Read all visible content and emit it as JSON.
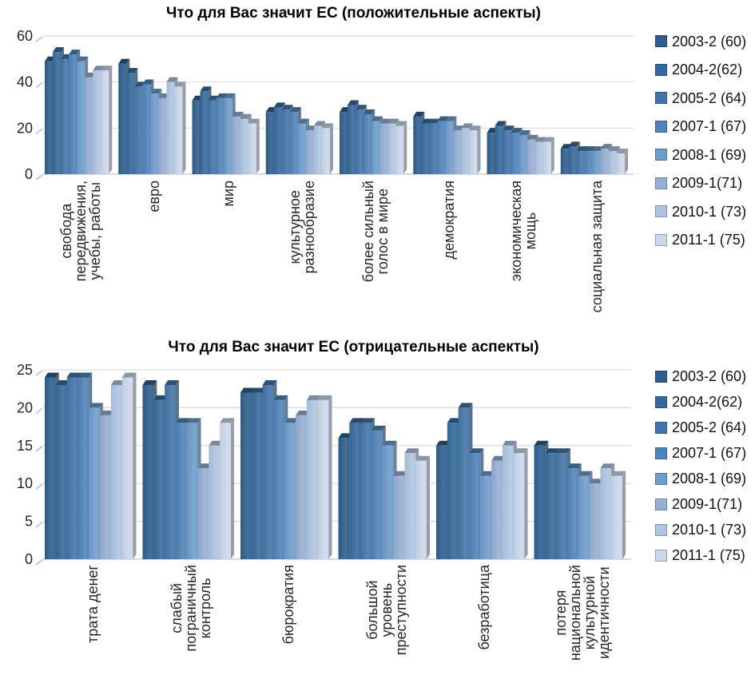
{
  "page": {
    "background": "#ffffff"
  },
  "charts": [
    {
      "title": "Что для Вас значит ЕС (положительные аспекты)",
      "chart_data": {
        "type": "bar",
        "title": "Что для Вас значит ЕС (положительные аспекты)",
        "xlabel": "",
        "ylabel": "",
        "ylim": [
          0,
          60
        ],
        "yticks": [
          0,
          20,
          40,
          60
        ],
        "grid": true,
        "legend_position": "right",
        "categories": [
          "свобода\nпередвижения,\nучебы, работы",
          "евро",
          "мир",
          "культурное\nразнообразие",
          "более сильный\nголос в мире",
          "демократия",
          "экономическая\nмощь",
          "социальная защита"
        ],
        "series": [
          {
            "name": "2003-2 (60)",
            "color": "#2E5E8C",
            "values": [
              49,
              48,
              32,
              27,
              27,
              25,
              18,
              11
            ]
          },
          {
            "name": "2004-2(62)",
            "color": "#36699B",
            "values": [
              53,
              44,
              36,
              29,
              30,
              22,
              21,
              12
            ]
          },
          {
            "name": "2005-2 (64)",
            "color": "#4374A7",
            "values": [
              50,
              38,
              32,
              28,
              28,
              22,
              19,
              10
            ]
          },
          {
            "name": "2007-1 (67)",
            "color": "#4F83B9",
            "values": [
              52,
              39,
              33,
              27,
              26,
              23,
              18,
              10
            ]
          },
          {
            "name": "2008-1 (69)",
            "color": "#6E9CCB",
            "values": [
              49,
              35,
              33,
              22,
              23,
              23,
              17,
              10
            ]
          },
          {
            "name": "2009-1(71)",
            "color": "#96AED3",
            "values": [
              42,
              33,
              25,
              19,
              22,
              19,
              15,
              11
            ]
          },
          {
            "name": "2010-1 (73)",
            "color": "#AFC4E1",
            "values": [
              45,
              40,
              24,
              21,
              22,
              20,
              14,
              10
            ]
          },
          {
            "name": "2011-1 (75)",
            "color": "#CBD7EC",
            "values": [
              45,
              38,
              22,
              20,
              21,
              19,
              14,
              9
            ]
          }
        ]
      }
    },
    {
      "title": "Что для Вас значит ЕС (отрицательные аспекты)",
      "chart_data": {
        "type": "bar",
        "title": "Что для Вас значит ЕС (отрицательные аспекты)",
        "xlabel": "",
        "ylabel": "",
        "ylim": [
          0,
          25
        ],
        "yticks": [
          0,
          5,
          10,
          15,
          20,
          25
        ],
        "grid": true,
        "legend_position": "right",
        "categories": [
          "трата денег",
          "слабый\nпограничный\nконтроль",
          "бюрократия",
          "большой\nуровень\nпреступности",
          "безработица",
          "потеря\nнациональной\nкультурной\nидентичности"
        ],
        "series": [
          {
            "name": "2003-2 (60)",
            "color": "#2E5E8C",
            "values": [
              24,
              23,
              22,
              16,
              15,
              15
            ]
          },
          {
            "name": "2004-2(62)",
            "color": "#36699B",
            "values": [
              23,
              21,
              22,
              18,
              18,
              14
            ]
          },
          {
            "name": "2005-2 (64)",
            "color": "#4374A7",
            "values": [
              24,
              23,
              23,
              18,
              20,
              14
            ]
          },
          {
            "name": "2007-1 (67)",
            "color": "#4F83B9",
            "values": [
              24,
              18,
              21,
              17,
              14,
              12
            ]
          },
          {
            "name": "2008-1 (69)",
            "color": "#6E9CCB",
            "values": [
              20,
              18,
              18,
              15,
              11,
              11
            ]
          },
          {
            "name": "2009-1(71)",
            "color": "#96AED3",
            "values": [
              19,
              12,
              19,
              11,
              13,
              10
            ]
          },
          {
            "name": "2010-1 (73)",
            "color": "#AFC4E1",
            "values": [
              23,
              15,
              21,
              14,
              15,
              12
            ]
          },
          {
            "name": "2011-1 (75)",
            "color": "#CBD7EC",
            "values": [
              24,
              18,
              21,
              13,
              14,
              11
            ]
          }
        ]
      }
    }
  ],
  "colors": {
    "gridline": "#D9D9D9",
    "zero_line": "#C2C2C2",
    "tick_mark": "#A3B4C9",
    "axis_text": "#262626"
  }
}
